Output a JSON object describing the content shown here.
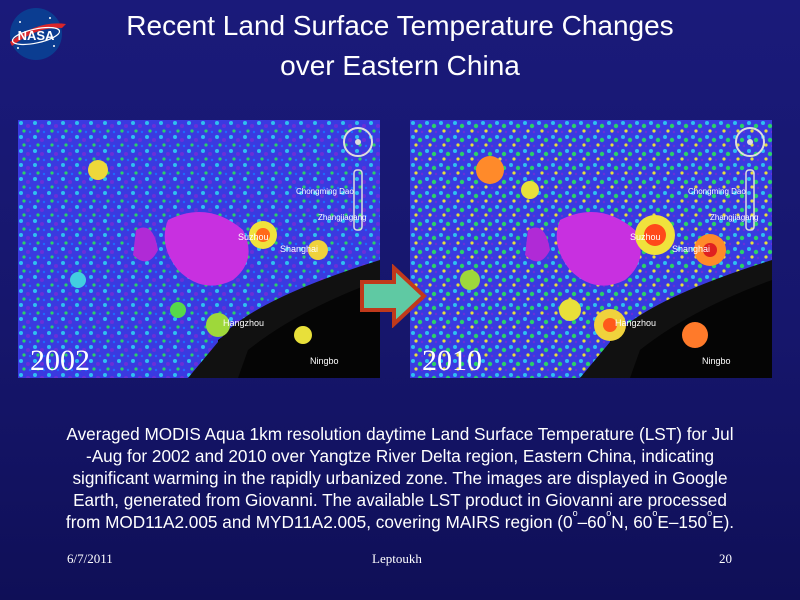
{
  "logo": {
    "text": "NASA"
  },
  "title": {
    "line1": "Recent Land Surface Temperature Changes",
    "line2": "over Eastern China"
  },
  "maps": [
    {
      "year": "2002"
    },
    {
      "year": "2010"
    }
  ],
  "map_labels": {
    "suzhou": "Suzhou",
    "shanghai": "Shanghai",
    "hangzhou": "Hangzhou",
    "ningbo": "Ningbo",
    "chongming": "Chongming Dao",
    "zhangjiagang": "Zhangjiagang"
  },
  "caption": {
    "line1": "Averaged MODIS Aqua 1km resolution daytime Land Surface Temperature (LST)  for Jul",
    "line2": "-Aug for 2002 and 2010 over Yangtze River Delta region, Eastern China,  indicating",
    "line3": "significant warming in the rapidly urbanized zone. The images are displayed in Google",
    "line4": "Earth, generated from Giovanni. The available LST product in Giovanni are processed",
    "line5_a": "from MOD11A2.005 and MYD11A2.005, covering MAIRS region (0",
    "sup1": "o",
    "line5_b": "–60",
    "sup2": "o",
    "line5_c": "N, 60",
    "sup3": "o",
    "line5_d": "E–150",
    "sup4": "o",
    "line5_e": "E)."
  },
  "footer": {
    "date": "6/7/2011",
    "author": "Leptoukh",
    "page": "20"
  },
  "colors": {
    "background": "#16166c",
    "arrow_fill": "#5fc9a3",
    "arrow_stroke": "#c0391b"
  }
}
